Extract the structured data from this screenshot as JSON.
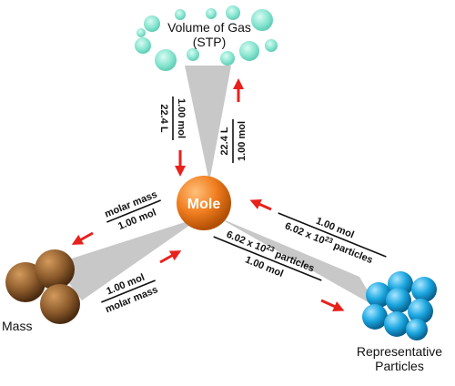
{
  "nodes": {
    "center": "Mole",
    "top": {
      "line1": "Volume of Gas",
      "line2": "(STP)"
    },
    "left": "Mass",
    "right": {
      "line1": "Representative",
      "line2": "Particles"
    }
  },
  "factors": {
    "gas_to_mole": {
      "numerator": "1.00 mol",
      "denominator": "22.4 L"
    },
    "mole_to_gas": {
      "numerator": "22.4 L",
      "denominator": "1.00 mol"
    },
    "mole_to_mass": {
      "numerator": "molar mass",
      "denominator": "1.00 mol"
    },
    "mass_to_mole": {
      "numerator": "1.00 mol",
      "denominator": "molar mass"
    },
    "particles_to_mole": {
      "numerator": "1.00 mol",
      "denominator": "6.02 x 10",
      "denominator_sup": "23",
      "denominator_tail": " particles"
    },
    "mole_to_particles": {
      "numerator": "6.02 x 10",
      "numerator_sup": "23",
      "numerator_tail": " particles",
      "denominator": "1.00 mol"
    }
  },
  "colors": {
    "connector": "#c8c8c8",
    "arrow": "#e8211d",
    "mole_orange": "#f07d1f",
    "gas_mint": "#7fe1cc",
    "mass_brown": "#8b5a2b",
    "particle_blue": "#1aa6e0"
  }
}
